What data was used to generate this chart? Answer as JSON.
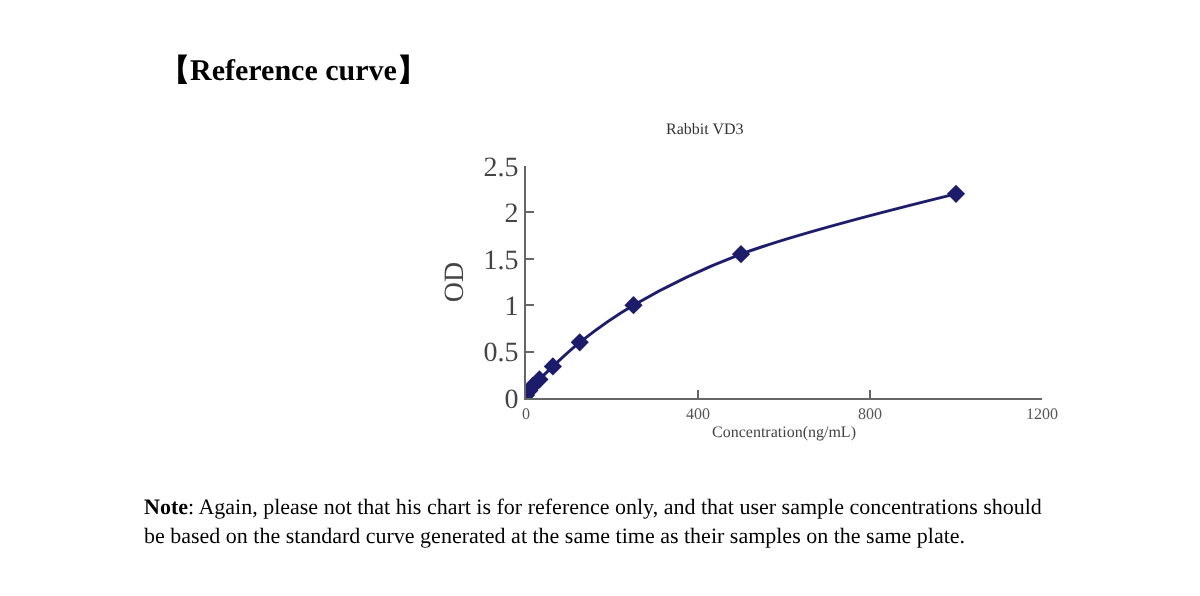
{
  "chart_data": {
    "type": "line",
    "title": "【Reference curve】",
    "subtitle": "Rabbit VD3",
    "xlabel": "Concentration(ng/mL)",
    "ylabel": "OD",
    "x": [
      0,
      7.8,
      15.6,
      31.25,
      62.5,
      125,
      250,
      500,
      1000
    ],
    "series": [
      {
        "color": "#1c1c6b",
        "values": [
          0.03,
          0.08,
          0.13,
          0.2,
          0.34,
          0.6,
          1.0,
          1.55,
          2.2
        ]
      }
    ],
    "xlim": [
      0,
      1200
    ],
    "xticks": [
      0,
      400,
      800,
      1200
    ],
    "ylim": [
      0,
      2.5
    ],
    "yticks": [
      0,
      0.5,
      1,
      1.5,
      2,
      2.5
    ],
    "marker": "diamond",
    "line_style": "solid",
    "annotations": [
      "Note: Again, please not that his chart is for reference only, and that user sample concentrations should be based on the standard curve generated at the same time as their samples on the same plate."
    ]
  }
}
